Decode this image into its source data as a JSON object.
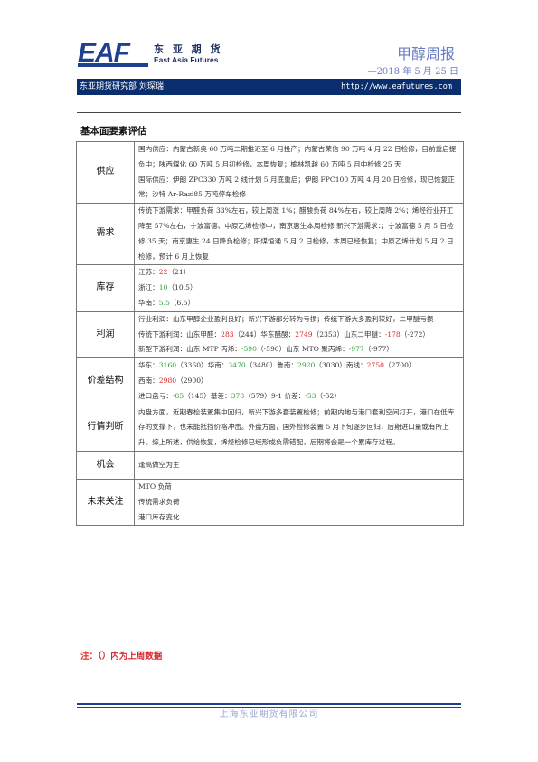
{
  "logo": {
    "mark": "EAF",
    "cn": "东 亚 期 货",
    "en": "East Asia Futures"
  },
  "report": {
    "title": "甲醇周报",
    "date": "—2018 年 5 月 25 日"
  },
  "header_bar": {
    "dept": "东亚期货研究部  刘琛瑞",
    "url": "http://www.eafutures.com"
  },
  "section_title": "基本面要素评估",
  "table": {
    "supply": {
      "label": "供应",
      "text": "国内供应：内蒙古新奥 60 万吨二期推迟至 6 月投产；内蒙古荣信 90 万吨 4 月 22 日检修，目前重启提负中；陕西煤化 60 万吨 5 月初检修，本周恢复；榆林凯越 60 万吨 5 月中检修 25 天",
      "text2": "国际供应：伊朗 ZPC330 万吨 2 线计划 5 月底重启；伊朗 FPC100 万吨 4 月 20 日检修，现已恢复正常；沙特 Ar-Razi85 万吨停车检修"
    },
    "demand": {
      "label": "需求",
      "text": "传统下游需求：甲醛负荷 33%左右，较上周涨 1%；醋酸负荷 84%左右，较上周降 2%；烯烃行业开工降至 57%左右，宁波富德、中原乙烯检修中，南京惠生本周检修 新兴下游需求：；宁波富德 5 月 5 日检修 35 天；南京惠生 24 日降负检修；阳煤恒通 5 月 2 日检修，本周已经恢复；中原乙烯计划 5 月 2 日检修，预计 6 月上恢复"
    },
    "inventory": {
      "label": "库存",
      "jiangsu": {
        "name": "江苏：",
        "value": "22",
        "prev": "（21）"
      },
      "zhejiang": {
        "name": "浙江：",
        "value": "10",
        "prev": "（10.5）"
      },
      "huanan": {
        "name": "华南：",
        "value": "5.5",
        "prev": "（6.5）"
      }
    },
    "profit": {
      "label": "利润",
      "industry": "行业利润：山东甲醇企业盈利良好；新兴下游部分转为亏损；传统下游大多盈利较好，二甲醚亏损",
      "traditional_prefix": "传统下游利润：山东甲醛：",
      "formaldehyde_value": "283",
      "formaldehyde_prev": "（244）华东醋酸：",
      "acetic_value": "2749",
      "acetic_prev": "（2353）山东二甲醚：",
      "dme_value": "-178",
      "dme_prev": "（-272）",
      "new_prefix": "新型下游利润：山东 MTP 丙烯：",
      "mtp_value": "-590",
      "mtp_prev": "（-590）山东 MTO 聚丙烯：",
      "mto_value": "-977",
      "mto_prev": "（-977）"
    },
    "spread": {
      "label": "价差结构",
      "huadong_name": "华东：",
      "huadong_value": "3160",
      "huadong_prev": "（3360）华南：",
      "huanan_value": "3470",
      "huanan_prev": "（3480）鲁南：",
      "lunan_value": "2920",
      "lunan_prev": "（3030）南线：",
      "nanxian_value": "2750",
      "nanxian_prev": "（2700）",
      "xinan_name": "西南：",
      "xinan_value": "2980",
      "xinan_prev": "（2900）",
      "import_name": "进口盘亏：",
      "import_value": "-85",
      "import_prev": "（145）基差：",
      "basis_value": "378",
      "basis_prev": "（579）9-1 价差：",
      "calendar_value": "-53",
      "calendar_prev": "（-52）"
    },
    "judgment": {
      "label": "行情判断",
      "text": "内盘方面，近期春检装置集中回归，新兴下游多套装置检修；前期内地与港口套利空间打开，港口在低库存的支撑下，也未能抵挡价格冲击。外盘方面，国外检修装置 5 月下旬逐步回归，后期进口量或有所上升。综上所述，供给恢复，烯烃检修已经形成负需错配，后期将会是一个累库存过程。"
    },
    "opportunity": {
      "label": "机会",
      "text": "逢高做空为主"
    },
    "future": {
      "label": "未来关注",
      "items": [
        "MTO 负荷",
        "传统需求负荷",
        "港口库存变化"
      ]
    }
  },
  "note": "注：（）内为上周数据",
  "footer": {
    "company": "上海东亚期货有限公司"
  },
  "colors": {
    "navy": "#0a2d6e",
    "up": "#d8262b",
    "down": "#2f9e3f"
  }
}
